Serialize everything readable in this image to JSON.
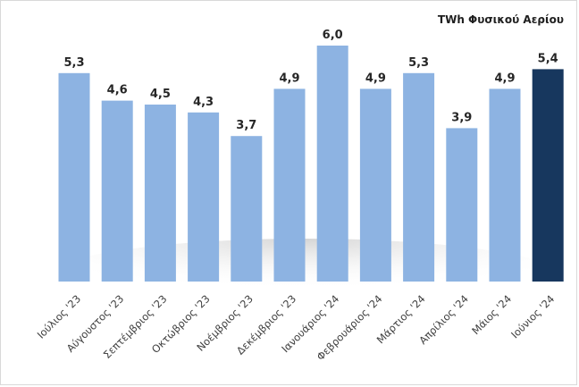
{
  "chart_data": {
    "type": "bar",
    "unit_label": "TWh Φυσικού Αερίου",
    "categories": [
      "Ιούλιος '23",
      "Αύγουστος '23",
      "Σεπτέμβριος '23",
      "Οκτώβριος '23",
      "Νοέμβριος '23",
      "Δεκέμβριος '23",
      "Ιανουάριος '24",
      "Φεβρουάριος '24",
      "Μάρτιος '24",
      "Απρίλιος '24",
      "Μάιος '24",
      "Ιούνιος '24"
    ],
    "values": [
      5.3,
      4.6,
      4.5,
      4.3,
      3.7,
      4.9,
      6.0,
      4.9,
      5.3,
      3.9,
      4.9,
      5.4
    ],
    "value_labels": [
      "5,3",
      "4,6",
      "4,5",
      "4,3",
      "3,7",
      "4,9",
      "6,0",
      "4,9",
      "5,3",
      "3,9",
      "4,9",
      "5,4"
    ],
    "highlight_index": 11,
    "colors": {
      "bar": "#8db3e2",
      "highlight": "#17375e"
    },
    "ylim": [
      0,
      6.5
    ],
    "grid": false,
    "legend": "none"
  }
}
